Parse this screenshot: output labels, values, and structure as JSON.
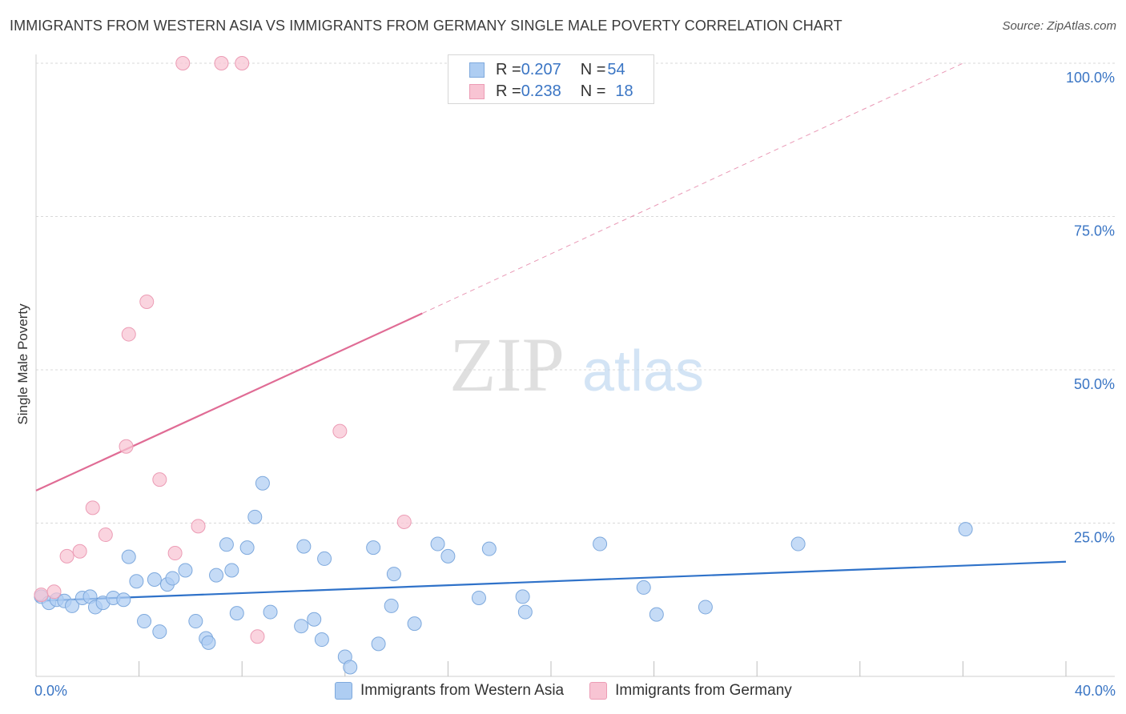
{
  "title": "IMMIGRANTS FROM WESTERN ASIA VS IMMIGRANTS FROM GERMANY SINGLE MALE POVERTY CORRELATION CHART",
  "source": "Source: ZipAtlas.com",
  "watermark": {
    "zip": "ZIP",
    "atlas": "atlas"
  },
  "colors": {
    "blue_fill": "#aecdf2",
    "blue_stroke": "#7ea9dd",
    "blue_line": "#2f72c9",
    "pink_fill": "#f8c4d3",
    "pink_stroke": "#ec9cb5",
    "pink_line": "#e06c95",
    "grid": "#d9d9d9",
    "tick_text": "#3a75c4"
  },
  "legend": {
    "rows": [
      {
        "r_label": "R = ",
        "r_value": "0.207",
        "n_label": "N = ",
        "n_value": "54",
        "series": "blue"
      },
      {
        "r_label": "R = ",
        "r_value": "0.238",
        "n_label": "N = ",
        "n_value": "18",
        "series": "pink"
      }
    ]
  },
  "bottom_legend": [
    "Immigrants from Western Asia",
    "Immigrants from Germany"
  ],
  "chart_data": {
    "type": "scatter",
    "title": "IMMIGRANTS FROM WESTERN ASIA VS IMMIGRANTS FROM GERMANY SINGLE MALE POVERTY CORRELATION CHART",
    "xlabel": "",
    "ylabel": "Single Male Poverty",
    "xlim": [
      0,
      40
    ],
    "ylim": [
      0,
      102
    ],
    "x_tick_labels": [
      {
        "value": 0,
        "label": "0.0%"
      },
      {
        "value": 40,
        "label": "40.0%"
      }
    ],
    "x_minor_ticks": [
      4,
      8,
      12,
      16,
      20,
      24,
      28,
      32,
      36,
      40
    ],
    "y_ticks": [
      {
        "value": 25,
        "label": "25.0%"
      },
      {
        "value": 50,
        "label": "50.0%"
      },
      {
        "value": 75,
        "label": "75.0%"
      },
      {
        "value": 100,
        "label": "100.0%"
      }
    ],
    "series": [
      {
        "name": "Immigrants from Western Asia",
        "color": "blue",
        "points": [
          [
            0.2,
            13.0
          ],
          [
            0.5,
            12.0
          ],
          [
            0.8,
            12.5
          ],
          [
            1.1,
            12.3
          ],
          [
            1.4,
            11.5
          ],
          [
            1.8,
            12.8
          ],
          [
            2.1,
            13.0
          ],
          [
            2.3,
            11.3
          ],
          [
            2.6,
            12.0
          ],
          [
            3.0,
            12.8
          ],
          [
            3.4,
            12.5
          ],
          [
            3.6,
            19.5
          ],
          [
            3.9,
            15.5
          ],
          [
            4.2,
            9.0
          ],
          [
            4.6,
            15.8
          ],
          [
            4.8,
            7.3
          ],
          [
            5.1,
            15.0
          ],
          [
            5.3,
            16.0
          ],
          [
            5.8,
            17.3
          ],
          [
            6.2,
            9.0
          ],
          [
            6.6,
            6.2
          ],
          [
            6.7,
            5.5
          ],
          [
            7.0,
            16.5
          ],
          [
            7.4,
            21.5
          ],
          [
            7.6,
            17.3
          ],
          [
            7.8,
            10.3
          ],
          [
            8.2,
            21.0
          ],
          [
            8.5,
            26.0
          ],
          [
            8.8,
            31.5
          ],
          [
            9.1,
            10.5
          ],
          [
            10.4,
            21.2
          ],
          [
            10.3,
            8.2
          ],
          [
            10.8,
            9.3
          ],
          [
            11.1,
            6.0
          ],
          [
            11.2,
            19.2
          ],
          [
            12.0,
            3.2
          ],
          [
            12.2,
            1.5
          ],
          [
            13.1,
            21.0
          ],
          [
            13.3,
            5.3
          ],
          [
            13.8,
            11.5
          ],
          [
            13.9,
            16.7
          ],
          [
            14.7,
            8.6
          ],
          [
            15.6,
            21.6
          ],
          [
            16.0,
            19.6
          ],
          [
            17.2,
            12.8
          ],
          [
            17.6,
            20.8
          ],
          [
            18.9,
            13.0
          ],
          [
            19.0,
            10.5
          ],
          [
            21.9,
            21.6
          ],
          [
            23.6,
            14.5
          ],
          [
            24.1,
            10.1
          ],
          [
            26.0,
            11.3
          ],
          [
            29.6,
            21.6
          ],
          [
            36.1,
            24.0
          ]
        ],
        "trend": {
          "x": [
            0,
            40
          ],
          "y": [
            12.3,
            18.7
          ],
          "style": "solid"
        }
      },
      {
        "name": "Immigrants from Germany",
        "color": "pink",
        "points": [
          [
            0.2,
            13.3
          ],
          [
            0.7,
            13.8
          ],
          [
            1.2,
            19.6
          ],
          [
            1.7,
            20.4
          ],
          [
            2.2,
            27.5
          ],
          [
            2.7,
            23.1
          ],
          [
            3.5,
            37.5
          ],
          [
            3.6,
            55.8
          ],
          [
            4.3,
            61.1
          ],
          [
            4.8,
            32.1
          ],
          [
            5.4,
            20.1
          ],
          [
            5.7,
            100.0
          ],
          [
            6.3,
            24.5
          ],
          [
            7.2,
            100.0
          ],
          [
            8.0,
            100.0
          ],
          [
            8.6,
            6.5
          ],
          [
            11.8,
            40.0
          ],
          [
            14.3,
            25.2
          ]
        ],
        "trend": {
          "x": [
            0,
            15.0
          ],
          "y": [
            30.3,
            59.2
          ],
          "style": "solid"
        },
        "trend_extension": {
          "x": [
            15.0,
            36.0
          ],
          "y": [
            59.2,
            100.0
          ],
          "style": "dashed"
        }
      }
    ]
  }
}
